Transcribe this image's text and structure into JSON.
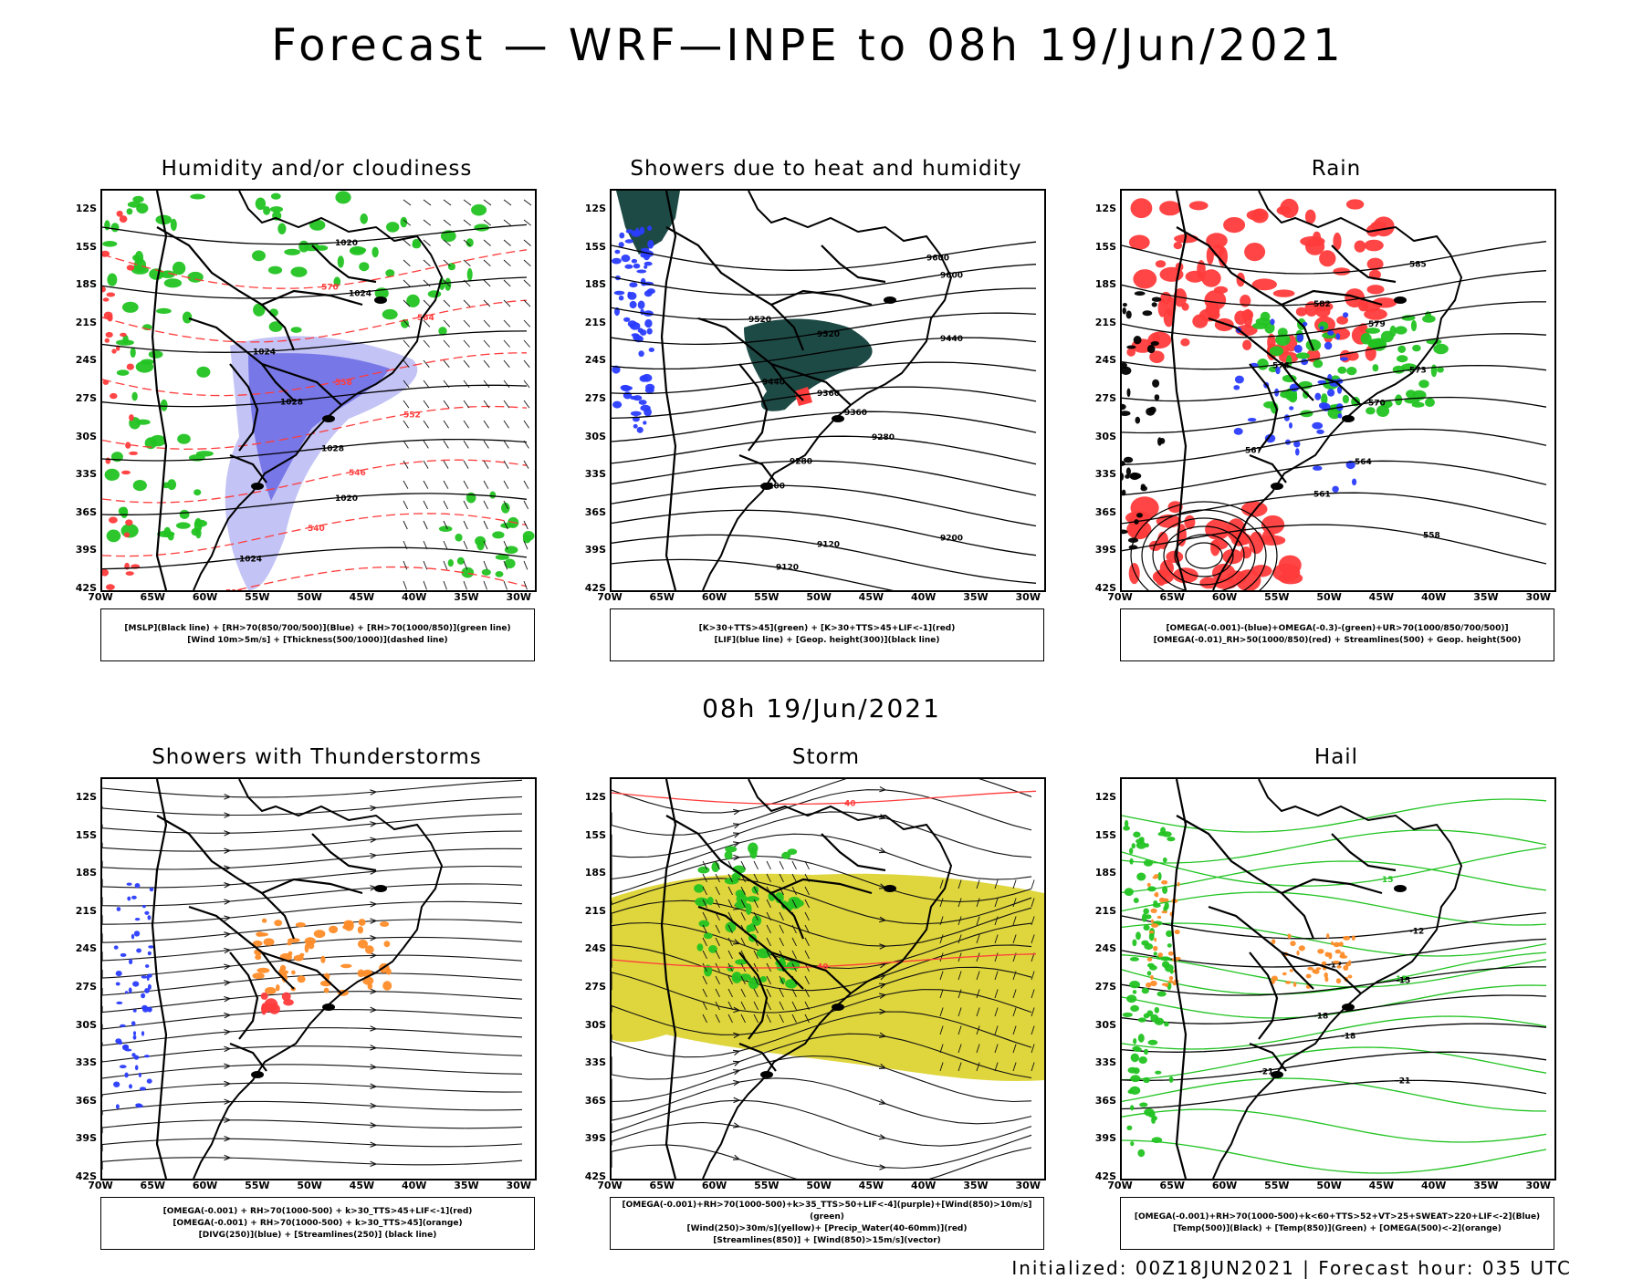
{
  "header": {
    "title": "Forecast — WRF—INPE to 08h 19/Jun/2021",
    "mid_title": "08h 19/Jun/2021",
    "footer": "Initialized: 00Z18JUN2021 | Forecast hour: 035 UTC"
  },
  "axes": {
    "lat_ticks": [
      "12S",
      "15S",
      "18S",
      "21S",
      "24S",
      "27S",
      "30S",
      "33S",
      "36S",
      "39S",
      "42S"
    ],
    "lon_ticks": [
      "70W",
      "65W",
      "60W",
      "55W",
      "50W",
      "45W",
      "40W",
      "35W",
      "30W"
    ]
  },
  "colors": {
    "green": "#22c322",
    "blue": "#2a3cff",
    "red": "#ff3b3b",
    "orange": "#ff8c28",
    "yellow": "#dcd228",
    "purple": "#6a5acd",
    "teal": "#1e4a46"
  },
  "panels": [
    {
      "id": "humidity",
      "title": "Humidity and/or cloudiness",
      "legend": [
        "[MSLP](Black line) + [RH>70(850/700/500)](Blue) + [RH>70(1000/850)](green line)",
        "[Wind 10m>5m/s] + [Thickness(500/1000)](dashed line)"
      ],
      "contour_labels": [
        "1020",
        "1024",
        "1024",
        "1028",
        "1028",
        "1020",
        "1024",
        "570",
        "564",
        "558",
        "552",
        "546",
        "540",
        "534"
      ]
    },
    {
      "id": "showers_heat",
      "title": "Showers due to heat and humidity",
      "legend": [
        "[K>30+TTS>45](green) + [K>30+TTS>45+LIF<-1](red)",
        "[LIF](blue line) + [Geop. height(300)](black line)"
      ],
      "contour_labels": [
        "9600",
        "9600",
        "9520",
        "9520",
        "9440",
        "9440",
        "9360",
        "9360",
        "9280",
        "9280",
        "9200",
        "9200",
        "9120",
        "9120"
      ]
    },
    {
      "id": "rain",
      "title": "Rain",
      "legend": [
        "[OMEGA(-0.001)-(blue)+OMEGA(-0.3)-(green)+UR>70(1000/850/700/500)]",
        "[OMEGA(-0.01)_RH>50(1000/850)(red) + Streamlines(500) + Geop. height(500)"
      ],
      "contour_labels": [
        "585",
        "582",
        "579",
        "576",
        "573",
        "570",
        "567",
        "564",
        "561",
        "558"
      ]
    },
    {
      "id": "thunder",
      "title": "Showers with Thunderstorms",
      "legend": [
        "[OMEGA(-0.001) + RH>70(1000-500) + k>30_TTS>45+LIF<-1](red)",
        "[OMEGA(-0.001) + RH>70(1000-500) + k>30_TTS>45](orange)",
        "[DIVG(250)](blue) + [Streamlines(250)] (black line)"
      ]
    },
    {
      "id": "storm",
      "title": "Storm",
      "legend": [
        "[OMEGA(-0.001)+RH>70(1000-500)+k>35_TTS>50+LIF<-4](purple)+[Wind(850)>10m/s](green)",
        "[Wind(250)>30m/s](yellow)+ [Precip_Water(40-60mm)](red)",
        "[Streamlines(850)] + [Wind(850)>15m/s](vector)"
      ],
      "contour_labels": [
        "40",
        "40"
      ]
    },
    {
      "id": "hail",
      "title": "Hail",
      "legend": [
        "[OMEGA(-0.001)+RH>70(1000-500)+k<60+TTS>52+VT>25+SWEAT>220+LIF<-2](Blue)",
        "[Temp(500)](Black) + [Temp(850)](Green) + [OMEGA(500)<-2](orange)"
      ],
      "contour_labels": [
        "15",
        "15",
        "-12",
        "-12",
        "-15",
        "-18",
        "-18",
        "-21",
        "-21"
      ]
    }
  ]
}
